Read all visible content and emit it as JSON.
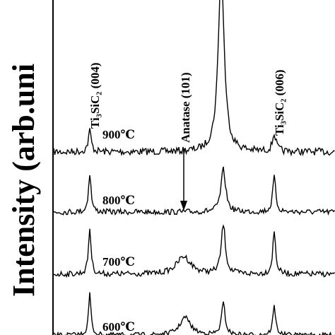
{
  "axis_label": "Intensity (arb.uni",
  "annotations": [
    "Ti₃SiC₂ (004)",
    "Anatase (101)",
    "Ti₃SiC₂ (006)"
  ],
  "curve_labels": [
    "900℃",
    "800℃",
    "700℃",
    "600℃"
  ]
}
